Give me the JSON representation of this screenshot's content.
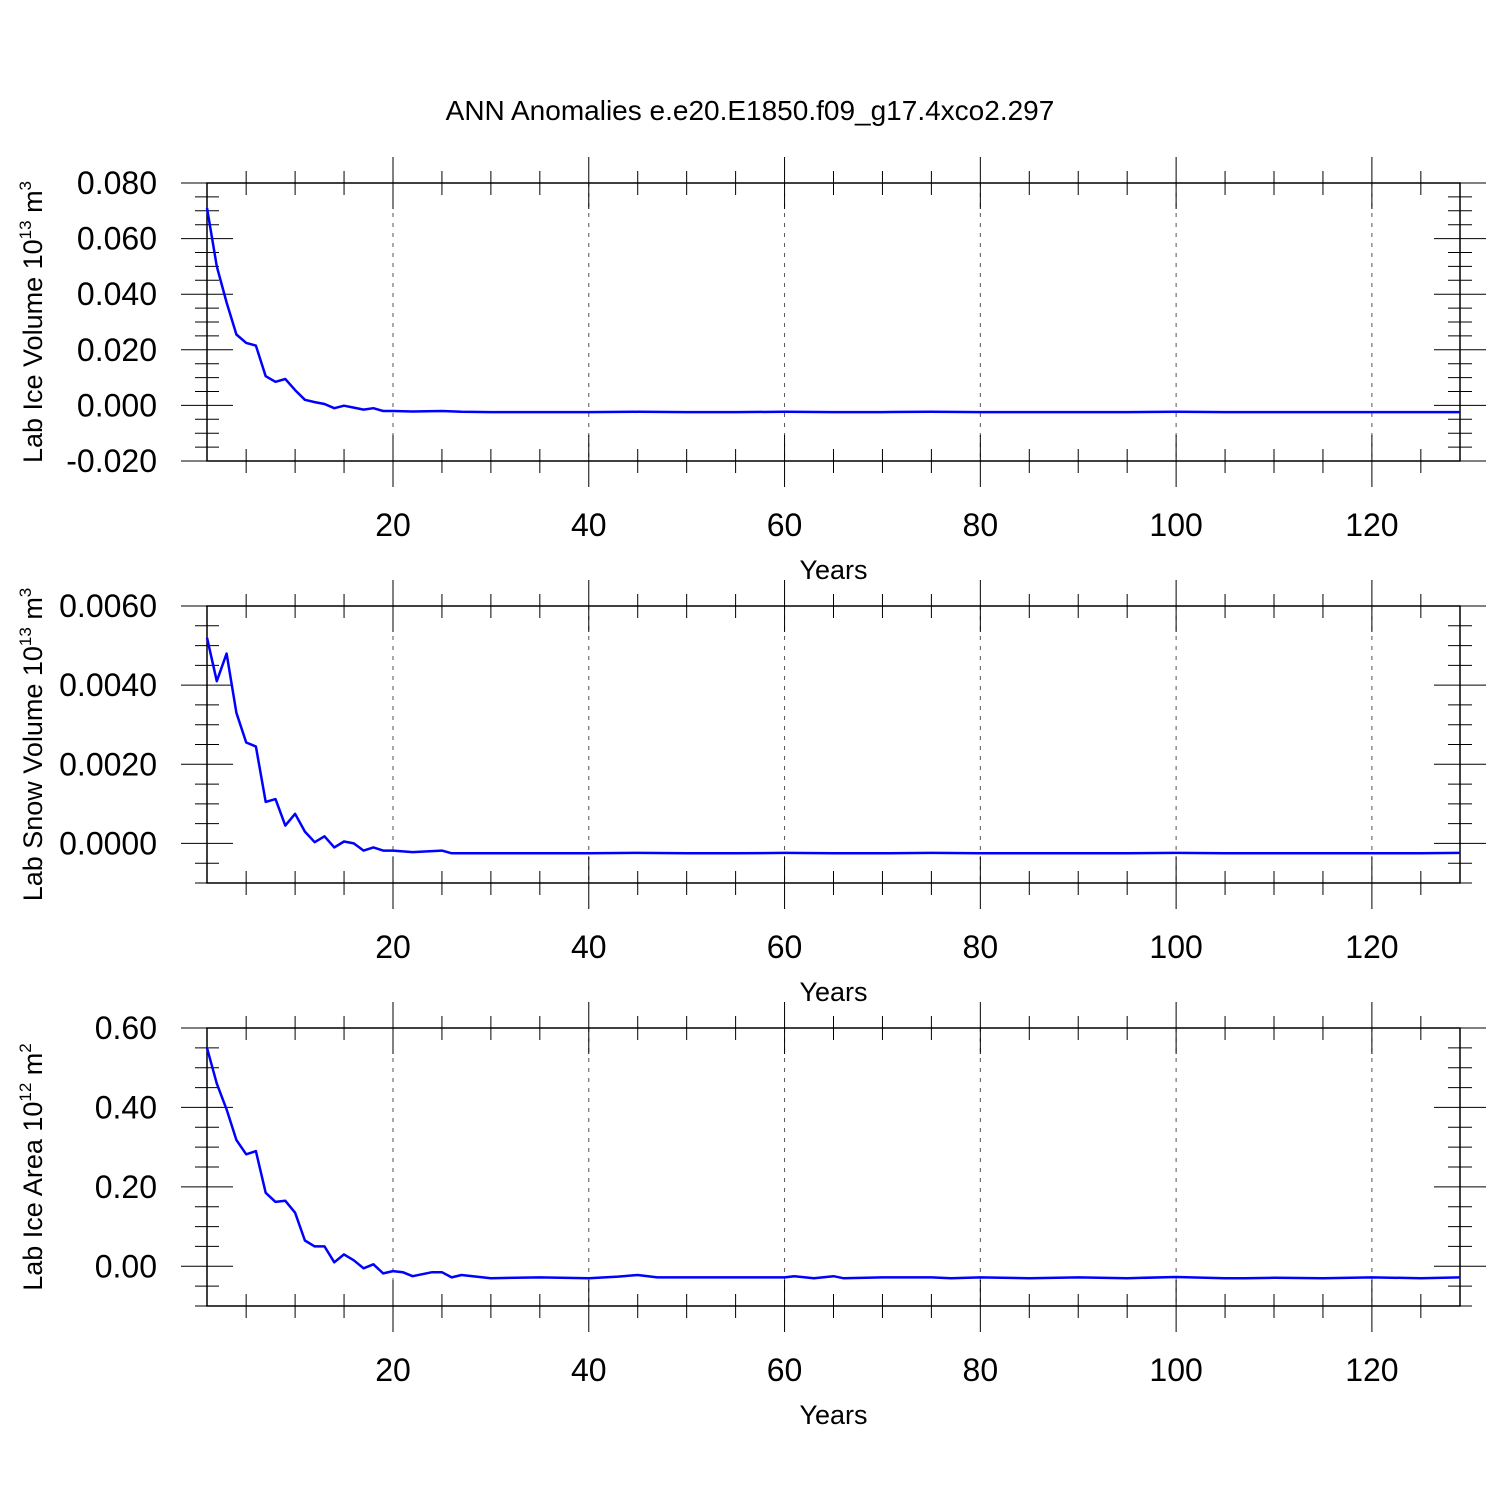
{
  "title": "ANN Anomalies e.e20.E1850.f09_g17.4xco2.297",
  "line_color": "#0000ff",
  "chart_data": [
    {
      "type": "line",
      "ylabel_main": "Lab Ice Volume 10",
      "ylabel_exp": "13",
      "ylabel_unit": " m",
      "ylabel_unit_exp": "3",
      "xlabel": "Years",
      "xlim": [
        1,
        129
      ],
      "ylim": [
        -0.02,
        0.08
      ],
      "yticks": [
        -0.02,
        0,
        0.02,
        0.04,
        0.06,
        0.08
      ],
      "ytick_labels": [
        "-0.020",
        "0.000",
        "0.020",
        "0.040",
        "0.060",
        "0.080"
      ],
      "xticks": [
        20,
        40,
        60,
        80,
        100,
        120
      ],
      "xtick_labels": [
        "20",
        "40",
        "60",
        "80",
        "100",
        "120"
      ],
      "grid": "vertical dashed at x ticks",
      "x": [
        1,
        2,
        3,
        4,
        5,
        6,
        7,
        8,
        9,
        10,
        11,
        12,
        13,
        14,
        15,
        16,
        17,
        18,
        19,
        20,
        22,
        25,
        27,
        30,
        35,
        40,
        45,
        50,
        55,
        60,
        65,
        70,
        75,
        80,
        85,
        90,
        95,
        100,
        105,
        110,
        115,
        120,
        125,
        129
      ],
      "values": [
        0.071,
        0.05,
        0.037,
        0.0255,
        0.0225,
        0.0215,
        0.0105,
        0.0085,
        0.0095,
        0.0055,
        0.002,
        0.0012,
        0.0005,
        -0.001,
        -0.0001,
        -0.0008,
        -0.0015,
        -0.001,
        -0.002,
        -0.002,
        -0.0022,
        -0.002,
        -0.0023,
        -0.0024,
        -0.0024,
        -0.0024,
        -0.0023,
        -0.0024,
        -0.0024,
        -0.0023,
        -0.0024,
        -0.0024,
        -0.0023,
        -0.0024,
        -0.0024,
        -0.0024,
        -0.0024,
        -0.0023,
        -0.0024,
        -0.0024,
        -0.0024,
        -0.0024,
        -0.0024,
        -0.0024
      ]
    },
    {
      "type": "line",
      "ylabel_main": "Lab Snow Volume 10",
      "ylabel_exp": "13",
      "ylabel_unit": " m",
      "ylabel_unit_exp": "3",
      "xlabel": "Years",
      "xlim": [
        1,
        129
      ],
      "ylim": [
        -0.001,
        0.006
      ],
      "yticks": [
        0,
        0.002,
        0.004,
        0.006
      ],
      "ytick_labels": [
        "0.0000",
        "0.0020",
        "0.0040",
        "0.0060"
      ],
      "xticks": [
        20,
        40,
        60,
        80,
        100,
        120
      ],
      "xtick_labels": [
        "20",
        "40",
        "60",
        "80",
        "100",
        "120"
      ],
      "grid": "vertical dashed at x ticks",
      "x": [
        1,
        2,
        3,
        4,
        5,
        6,
        7,
        8,
        9,
        10,
        11,
        12,
        13,
        14,
        15,
        16,
        17,
        18,
        19,
        20,
        22,
        25,
        26,
        30,
        35,
        40,
        45,
        50,
        55,
        60,
        65,
        70,
        75,
        80,
        85,
        90,
        95,
        100,
        105,
        110,
        115,
        120,
        125,
        129
      ],
      "values": [
        0.0052,
        0.0041,
        0.0048,
        0.0033,
        0.00255,
        0.00245,
        0.00105,
        0.00112,
        0.00045,
        0.00075,
        0.0003,
        3e-05,
        0.00018,
        -0.0001,
        5e-05,
        0.0,
        -0.00018,
        -0.0001,
        -0.00018,
        -0.00018,
        -0.00022,
        -0.00018,
        -0.00025,
        -0.00025,
        -0.00025,
        -0.00025,
        -0.00024,
        -0.00025,
        -0.00025,
        -0.00024,
        -0.00025,
        -0.00025,
        -0.00024,
        -0.00025,
        -0.00025,
        -0.00025,
        -0.00025,
        -0.00024,
        -0.00025,
        -0.00025,
        -0.00025,
        -0.00025,
        -0.00025,
        -0.00024
      ]
    },
    {
      "type": "line",
      "ylabel_main": "Lab Ice Area 10",
      "ylabel_exp": "12",
      "ylabel_unit": " m",
      "ylabel_unit_exp": "2",
      "xlabel": "Years",
      "xlim": [
        1,
        129
      ],
      "ylim": [
        -0.1,
        0.6
      ],
      "yticks": [
        0,
        0.2,
        0.4,
        0.6
      ],
      "ytick_labels": [
        "0.00",
        "0.20",
        "0.40",
        "0.60"
      ],
      "xticks": [
        20,
        40,
        60,
        80,
        100,
        120
      ],
      "xtick_labels": [
        "20",
        "40",
        "60",
        "80",
        "100",
        "120"
      ],
      "grid": "vertical dashed at x ticks",
      "x": [
        1,
        2,
        3,
        4,
        5,
        6,
        7,
        8,
        9,
        10,
        11,
        12,
        13,
        14,
        15,
        16,
        17,
        18,
        19,
        20,
        21,
        22,
        24,
        25,
        26,
        27,
        30,
        35,
        40,
        43,
        45,
        47,
        50,
        55,
        60,
        61,
        63,
        65,
        66,
        70,
        75,
        77,
        80,
        85,
        90,
        95,
        100,
        105,
        107,
        110,
        115,
        120,
        125,
        129
      ],
      "values": [
        0.55,
        0.46,
        0.395,
        0.318,
        0.282,
        0.29,
        0.185,
        0.162,
        0.165,
        0.135,
        0.065,
        0.05,
        0.05,
        0.01,
        0.03,
        0.015,
        -0.005,
        0.005,
        -0.018,
        -0.012,
        -0.015,
        -0.025,
        -0.015,
        -0.015,
        -0.028,
        -0.022,
        -0.03,
        -0.028,
        -0.03,
        -0.026,
        -0.022,
        -0.028,
        -0.028,
        -0.028,
        -0.028,
        -0.025,
        -0.03,
        -0.025,
        -0.03,
        -0.028,
        -0.028,
        -0.03,
        -0.028,
        -0.03,
        -0.028,
        -0.03,
        -0.027,
        -0.03,
        -0.03,
        -0.029,
        -0.03,
        -0.028,
        -0.03,
        -0.028
      ]
    }
  ]
}
